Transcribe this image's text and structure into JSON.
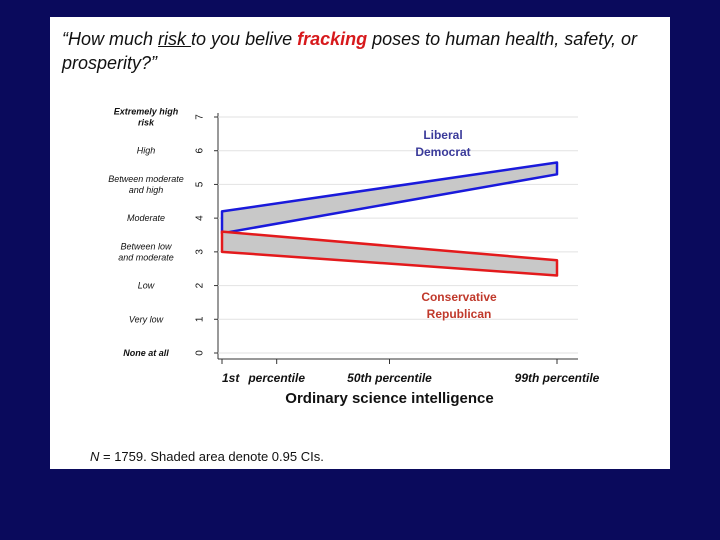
{
  "slide": {
    "title_pre": "“How much ",
    "title_risk": "risk ",
    "title_mid": "to you belive ",
    "title_fracking": "fracking",
    "title_post": " poses to human health, safety, or prosperity?”",
    "footnote_n": "N",
    "footnote_rest": " = 1759.  Shaded area denote 0.95 CIs."
  },
  "chart_data": {
    "type": "line",
    "xlabel": "Ordinary science intelligence",
    "x_ticks": [
      {
        "label": "1st",
        "x": 1
      },
      {
        "label": "percentile",
        "x": 17
      },
      {
        "label": "50th percentile",
        "x": 50
      },
      {
        "label": "99th percentile",
        "x": 99
      }
    ],
    "xlim": [
      1,
      99
    ],
    "ylim": [
      0,
      7
    ],
    "y_ticks": [
      {
        "value": 0,
        "num": "0",
        "label_lines": [
          "None at all"
        ],
        "bold": true
      },
      {
        "value": 1,
        "num": "1",
        "label_lines": [
          "Very low"
        ],
        "bold": false
      },
      {
        "value": 2,
        "num": "2",
        "label_lines": [
          "Low"
        ],
        "bold": false
      },
      {
        "value": 3,
        "num": "3",
        "label_lines": [
          "Between low",
          "and moderate"
        ],
        "bold": false
      },
      {
        "value": 4,
        "num": "4",
        "label_lines": [
          "Moderate"
        ],
        "bold": false
      },
      {
        "value": 5,
        "num": "5",
        "label_lines": [
          "Between moderate",
          "and high"
        ],
        "bold": false
      },
      {
        "value": 6,
        "num": "6",
        "label_lines": [
          "High"
        ],
        "bold": false
      },
      {
        "value": 7,
        "num": "7",
        "label_lines": [
          "Extremely high",
          "risk"
        ],
        "bold": true
      }
    ],
    "grid": true,
    "series": [
      {
        "name": "Liberal Democrat",
        "label_lines": [
          "Liberal",
          "Democrat"
        ],
        "color": "#1a1adb",
        "x": [
          1,
          99
        ],
        "lower": [
          3.55,
          5.3
        ],
        "upper": [
          4.2,
          5.65
        ]
      },
      {
        "name": "Conservative Republican",
        "label_lines": [
          "Conservative",
          "Republican"
        ],
        "color": "#e31a1c",
        "x": [
          1,
          99
        ],
        "lower": [
          3.0,
          2.3
        ],
        "upper": [
          3.6,
          2.75
        ]
      }
    ],
    "ci_fill": "#c8c8c8"
  }
}
